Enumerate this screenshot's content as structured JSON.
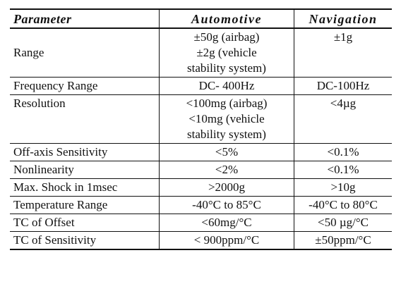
{
  "headers": {
    "parameter": "Parameter",
    "automotive": "Automotive",
    "navigation": "Navigation"
  },
  "rows": [
    {
      "parameter": "Range",
      "automotive": [
        "±50g (airbag)",
        "±2g (vehicle",
        "stability system)"
      ],
      "navigation": "±1g"
    },
    {
      "parameter": "Frequency Range",
      "automotive": [
        "DC- 400Hz"
      ],
      "navigation": "DC-100Hz"
    },
    {
      "parameter": "Resolution",
      "automotive": [
        "<100mg (airbag)",
        "<10mg (vehicle",
        "stability system)"
      ],
      "navigation": "<4µg"
    },
    {
      "parameter": "Off-axis Sensitivity",
      "automotive": [
        "<5%"
      ],
      "navigation": "<0.1%"
    },
    {
      "parameter": "Nonlinearity",
      "automotive": [
        "<2%"
      ],
      "navigation": "<0.1%"
    },
    {
      "parameter": "Max. Shock in 1msec",
      "automotive": [
        ">2000g"
      ],
      "navigation": ">10g"
    },
    {
      "parameter": "Temperature Range",
      "automotive": [
        "-40°C to 85°C"
      ],
      "navigation": "-40°C to 80°C"
    },
    {
      "parameter": "TC of Offset",
      "automotive": [
        "<60mg/°C"
      ],
      "navigation": "<50 µg/°C"
    },
    {
      "parameter": "TC of Sensitivity",
      "automotive": [
        "< 900ppm/°C"
      ],
      "navigation": "±50ppm/°C"
    }
  ]
}
